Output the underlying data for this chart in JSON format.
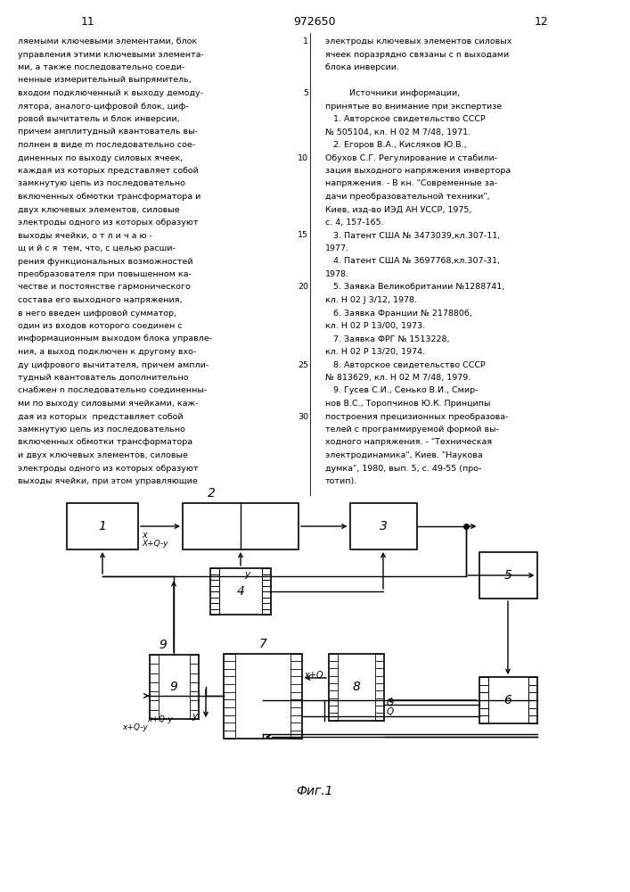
{
  "page_left_num": "11",
  "page_center_num": "972650",
  "page_right_num": "12",
  "left_text": [
    "ляемыми ключевыми элементами, блок",
    "управления этими ключевыми элемента-",
    "ми, а также последовательно соеди-",
    "ненные измерительный выпрямитель,",
    "входом подключенный к выходу демоду-",
    "лятора, аналого-цифровой блок, циф-",
    "ровой вычитатель и блок инверсии,",
    "причем амплитудный квантователь вы-",
    "полнен в виде m последовательно сое-",
    "диненных по выходу силовых ячеек,",
    "каждая из которых представляет собой",
    "замкнутую цепь из последовательно",
    "включенных обмотки трансформатора и",
    "двух ключевых элементов, силовые",
    "электроды одного из которых образуют",
    "выходы ячейки, о т л и ч а ю -",
    "щ и й с я  тем, что, с целью расши-",
    "рения функциональных возможностей",
    "преобразователя при повышенном ка-",
    "честве и постоянстве гармонического",
    "состава его выходного напряжения,",
    "в него введен цифровой сумматор,",
    "один из входов которого соединен с",
    "информационным выходом блока управле-",
    "ния, а выход подключен к другому вхо-",
    "ду цифрового вычитателя, причем ампли-",
    "тудный квантователь дополнительно",
    "снабжен n последовательно соединенны-",
    "ми по выходу силовыми ячейками, каж-",
    "дая из которых  представляет собой",
    "замкнутую цепь из последовательно",
    "включенных обмотки трансформатора",
    "и двух ключевых элементов, силовые",
    "электроды одного из которых образуют",
    "выходы ячейки, при этом управляющие"
  ],
  "right_text": [
    "электроды ключевых элементов силовых",
    "ячеек поразрядно связаны с n выходами",
    "блока инверсии.",
    "",
    "         Источники информации,",
    "принятые во внимание при экспертизе",
    "   1. Авторское свидетельство СССР",
    "№ 505104, кл. Н 02 М 7/48, 1971.",
    "   2. Егоров В.А., Кисляков Ю.В.,",
    "Обухов С.Г. Регулирование и стабили-",
    "зация выходного напряжения инвертора",
    "напряжения. - В кн. \"Современные за-",
    "дачи преобразовательной техники\",",
    "Киев, изд-во ИЭД АН УССР, 1975,",
    "с. 4, 157-165.",
    "   3. Патент США № 3473039,кл.307-11,",
    "1977.",
    "   4. Патент США № 3697768,кл.307-31,",
    "1978.",
    "   5. Заявка Великобритании №1288741,",
    "кл. Н 02 J 3/12, 1978.",
    "   6. Заявка Франции № 2178806,",
    "кл. Н 02 Р 13/00, 1973.",
    "   7. Заявка ФРГ № 1513228,",
    "кл. Н 02 Р 13/20, 1974.",
    "   8. Авторское свидетельство СССР",
    "№ 813629, кл. Н 02 М 7/48, 1979.",
    "   9. Гусев С.И., Сенько В.И., Смир-",
    "нов В.С., Торопчинов Ю.К. Принципы",
    "построения прецизионных преобразова-",
    "телей с программируемой формой вы-",
    "ходного напряжения. - \"Техническая",
    "электродинамика\", Киев. \"Наукова",
    "думка\", 1980, вып. 5, с. 49-55 (про-",
    "тотип)."
  ],
  "right_line_num_map": {
    "0": 1,
    "4": 5,
    "9": 10,
    "15": 15,
    "19": 20,
    "25": 25,
    "29": 30
  },
  "fig_caption": "Фиг.1",
  "bg_color": "#ffffff"
}
